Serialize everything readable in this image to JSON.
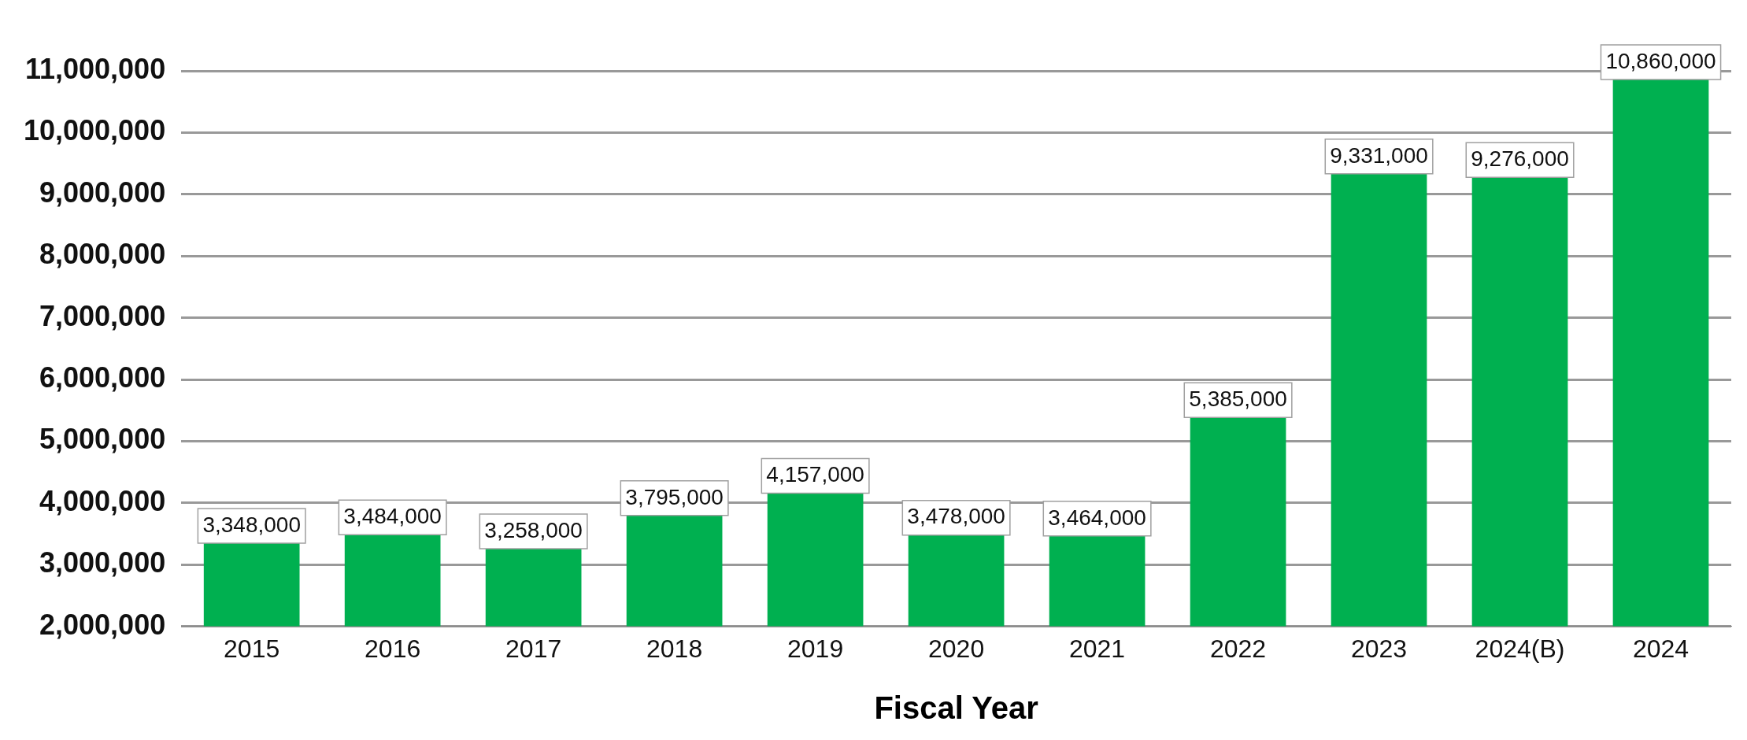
{
  "chart_data": {
    "type": "bar",
    "xlabel": "Fiscal Year",
    "categories": [
      "2015",
      "2016",
      "2017",
      "2018",
      "2019",
      "2020",
      "2021",
      "2022",
      "2023",
      "2024(B)",
      "2024"
    ],
    "values": [
      3348000,
      3484000,
      3258000,
      3795000,
      4157000,
      3478000,
      3464000,
      5385000,
      9331000,
      9276000,
      10860000
    ],
    "color": "#00b050",
    "value_labels": [
      "3,348,000",
      "3,484,000",
      "3,258,000",
      "3,795,000",
      "4,157,000",
      "3,478,000",
      "3,464,000",
      "5,385,000",
      "9,331,000",
      "9,276,000",
      "10,860,000"
    ],
    "ylim": [
      2000000,
      11000000
    ],
    "yticks": [
      {
        "value": 2000000,
        "label": "2,000,000"
      },
      {
        "value": 3000000,
        "label": "3,000,000"
      },
      {
        "value": 4000000,
        "label": "4,000,000"
      },
      {
        "value": 5000000,
        "label": "5,000,000"
      },
      {
        "value": 6000000,
        "label": "6,000,000"
      },
      {
        "value": 7000000,
        "label": "7,000,000"
      },
      {
        "value": 8000000,
        "label": "8,000,000"
      },
      {
        "value": 9000000,
        "label": "9,000,000"
      },
      {
        "value": 10000000,
        "label": "10,000,000"
      },
      {
        "value": 11000000,
        "label": "11,000,000"
      }
    ],
    "grid": "y",
    "legend": false
  }
}
